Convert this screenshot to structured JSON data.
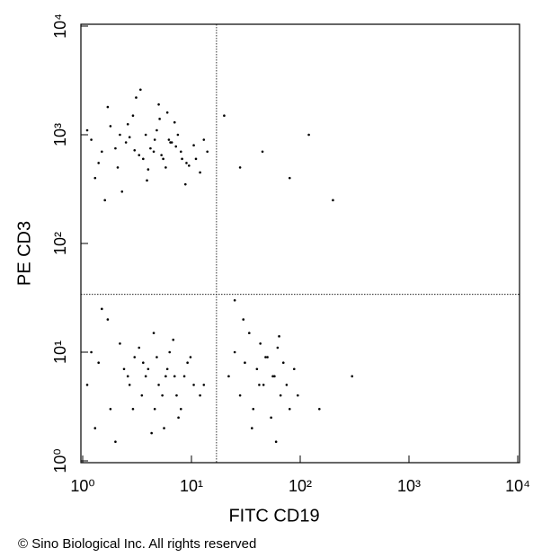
{
  "chart_data": {
    "type": "scatter",
    "x_label": "FITC CD19",
    "y_label": "PE CD3",
    "footer": "© Sino Biological Inc. All rights reserved",
    "log_x": true,
    "log_y": true,
    "xlim": [
      1,
      10000
    ],
    "ylim": [
      1,
      10000
    ],
    "xticks": [
      {
        "value": 1,
        "label": "10⁰"
      },
      {
        "value": 10,
        "label": "10¹"
      },
      {
        "value": 100,
        "label": "10²"
      },
      {
        "value": 1000,
        "label": "10³"
      },
      {
        "value": 10000,
        "label": "10⁴"
      }
    ],
    "yticks": [
      {
        "value": 1,
        "label": "10⁰"
      },
      {
        "value": 10,
        "label": "10¹"
      },
      {
        "value": 100,
        "label": "10²"
      },
      {
        "value": 1000,
        "label": "10³"
      },
      {
        "value": 10000,
        "label": "10⁴"
      }
    ],
    "quadrant_x": 17,
    "quadrant_y": 34,
    "series": [
      {
        "color": "#000000",
        "x": [
          1.2,
          1.5,
          1.8,
          2.1,
          2.5,
          2.9,
          3.3,
          3.8,
          4.2,
          4.8,
          5.5,
          6.2,
          7,
          8,
          9,
          10.5,
          12,
          1.3,
          1.7,
          2.3,
          2.7,
          3.1,
          3.6,
          4.5,
          5.1,
          5.8,
          6.6,
          7.5,
          8.8,
          11,
          13,
          1.1,
          1.4,
          2,
          2.6,
          3.4,
          4,
          4.6,
          5.3,
          6,
          7.2,
          9.5,
          1.6,
          2.2,
          3,
          3.9,
          5,
          6.4,
          8.2,
          14,
          1.1,
          1.4,
          1.8,
          2.2,
          2.6,
          3,
          3.5,
          4,
          4.5,
          5,
          5.6,
          6.3,
          7,
          8,
          9.2,
          10.5,
          12,
          1.3,
          1.7,
          2.4,
          2.9,
          3.3,
          3.8,
          4.3,
          4.8,
          5.4,
          6,
          6.8,
          7.6,
          8.6,
          1.2,
          2,
          2.7,
          3.6,
          4.6,
          5.8,
          7.3,
          9.8,
          13,
          1.5,
          22,
          25,
          28,
          31,
          34,
          37,
          40,
          43,
          46,
          50,
          54,
          58,
          62,
          66,
          70,
          75,
          80,
          88,
          30,
          36,
          42,
          48,
          56,
          64,
          95,
          20,
          28,
          45,
          80,
          120,
          200,
          300,
          60,
          150,
          25
        ],
        "y": [
          900,
          700,
          1200,
          500,
          850,
          1500,
          650,
          1000,
          750,
          1100,
          600,
          900,
          1300,
          700,
          550,
          800,
          450,
          400,
          1800,
          300,
          950,
          2200,
          600,
          700,
          1400,
          500,
          850,
          1000,
          350,
          600,
          900,
          1100,
          550,
          750,
          1250,
          2600,
          480,
          900,
          650,
          1600,
          780,
          520,
          250,
          1000,
          720,
          380,
          1900,
          850,
          600,
          700,
          5,
          8,
          3,
          12,
          6,
          9,
          4,
          7,
          15,
          5,
          2,
          10,
          6,
          3,
          8,
          5,
          4,
          2,
          20,
          7,
          3,
          11,
          6,
          1.8,
          9,
          4,
          7,
          13,
          2.5,
          6,
          10,
          1.5,
          5,
          8,
          3,
          6,
          4,
          9,
          5,
          25,
          6,
          10,
          4,
          8,
          15,
          3,
          7,
          12,
          5,
          9,
          2.5,
          6,
          11,
          4,
          8,
          5,
          3,
          7,
          20,
          2,
          5,
          9,
          6,
          14,
          4,
          1500,
          500,
          700,
          400,
          1000,
          250,
          6,
          1.5,
          3,
          30
        ]
      }
    ]
  }
}
